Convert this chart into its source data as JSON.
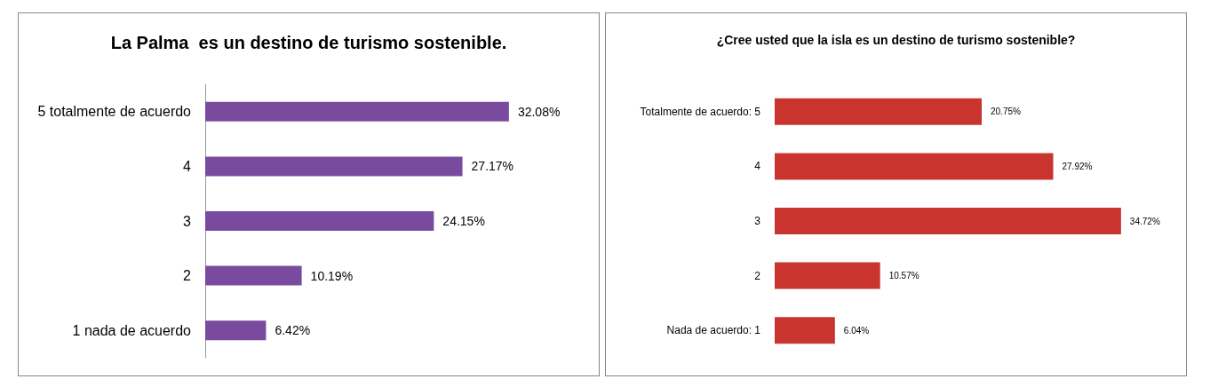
{
  "chart_data": [
    {
      "type": "bar",
      "orientation": "horizontal",
      "title": "La Palma  es un destino de turismo sostenible.",
      "categories": [
        "5 totalmente de acuerdo",
        "4",
        "3",
        "2",
        "1 nada de acuerdo"
      ],
      "values": [
        32.08,
        27.17,
        24.15,
        10.19,
        6.42
      ],
      "value_labels": [
        "32.08%",
        "27.17%",
        "24.15%",
        "10.19%",
        "6.42%"
      ],
      "color": "#7a4a9e"
    },
    {
      "type": "bar",
      "orientation": "horizontal",
      "title": "¿Cree usted que la isla es un destino de turismo sostenible?",
      "categories": [
        "Totalmente de acuerdo: 5",
        "4",
        "3",
        "2",
        "Nada de acuerdo: 1"
      ],
      "values": [
        20.75,
        27.92,
        34.72,
        10.57,
        6.04
      ],
      "value_labels": [
        "20.75%",
        "27.92%",
        "34.72%",
        "10.57%",
        "6.04%"
      ],
      "color": "#c9342f"
    }
  ]
}
